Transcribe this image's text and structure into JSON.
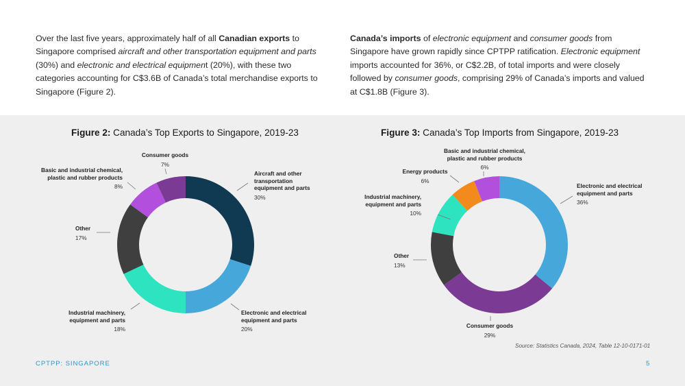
{
  "paragraph_left": {
    "t1": "Over the last five years, approximately half of all ",
    "b1": "Canadian exports",
    "t2": " to Singapore comprised ",
    "i1": "aircraft and other transportation equipment and parts",
    "t3": " (30%) and ",
    "i2": "electronic and electrical equipmen",
    "t4": "t (20%), with these two categories accounting for C$3.6B of Canada’s total merchandise exports to Singapore (Figure 2)."
  },
  "paragraph_right": {
    "b1": "Canada’s imports",
    "t1": " of ",
    "i1": "electronic equipment",
    "t2": " and ",
    "i2": "consumer goods",
    "t3": " from Singapore have grown rapidly since CPTPP ratification. ",
    "i3": "Electronic equipment",
    "t4": " imports accounted for 36%, or C$2.2B, of total imports and were closely followed by ",
    "i4": "consumer goods",
    "t5": ", comprising 29% of Canada’s imports and valued at C$1.8B (Figure 3)."
  },
  "figure2": {
    "label": "Figure 2:",
    "title": " Canada’s Top Exports to Singapore, 2019-23"
  },
  "figure3": {
    "label": "Figure 3:",
    "title": " Canada’s Top Imports from Singapore, 2019-23"
  },
  "chart_data": [
    {
      "type": "pie",
      "title": "Canada’s Top Exports to Singapore, 2019-23",
      "categories": [
        "Aircraft and other transportation equipment and parts",
        "Electronic and electrical equipment and parts",
        "Industrial machinery, equipment and parts",
        "Other",
        "Basic and industrial chemical, plastic and rubber products",
        "Consumer goods"
      ],
      "values": [
        30,
        20,
        18,
        17,
        8,
        7
      ],
      "value_labels": [
        "30%",
        "20%",
        "18%",
        "17%",
        "8%",
        "7%"
      ],
      "colors": [
        "#0f3a52",
        "#46a8da",
        "#2ee3c0",
        "#3f3f3f",
        "#b24fdc",
        "#7b3a93"
      ]
    },
    {
      "type": "pie",
      "title": "Canada’s Top Imports from Singapore, 2019-23",
      "categories": [
        "Electronic and electrical equipment and parts",
        "Consumer goods",
        "Other",
        "Industrial machinery, equipment and parts",
        "Energy products",
        "Basic and industrial chemical, plastic and rubber products"
      ],
      "values": [
        36,
        29,
        13,
        10,
        6,
        6
      ],
      "value_labels": [
        "36%",
        "29%",
        "13%",
        "10%",
        "6%",
        "6%"
      ],
      "colors": [
        "#46a8da",
        "#7b3a93",
        "#3f3f3f",
        "#2ee3c0",
        "#f28a1e",
        "#b24fdc"
      ]
    }
  ],
  "source": "Source: Statistics Canada, 2024, Table 12-10-0171-01",
  "footer": {
    "section": "CPTPP: SINGAPORE",
    "page": "5"
  }
}
